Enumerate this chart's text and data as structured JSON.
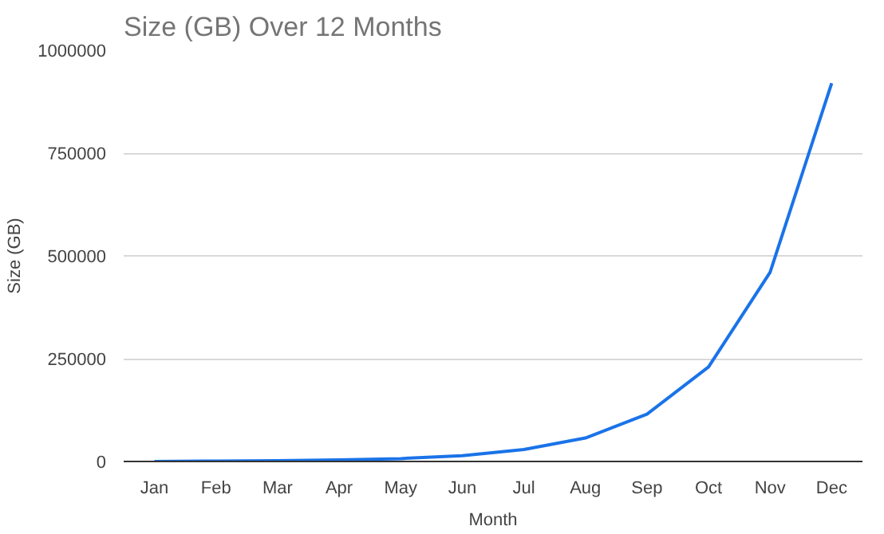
{
  "chart_data": {
    "type": "line",
    "title": "Size (GB) Over 12 Months",
    "xlabel": "Month",
    "ylabel": "Size (GB)",
    "categories": [
      "Jan",
      "Feb",
      "Mar",
      "Apr",
      "May",
      "Jun",
      "Jul",
      "Aug",
      "Sep",
      "Oct",
      "Nov",
      "Dec"
    ],
    "series": [
      {
        "color": "#1a73e8",
        "values": [
          0,
          1000,
          2000,
          4000,
          7000,
          14000,
          29000,
          57000,
          115000,
          230000,
          460000,
          920000
        ]
      }
    ],
    "ylim": [
      0,
      1000000
    ],
    "yticks": [
      0,
      250000,
      500000,
      750000,
      1000000
    ],
    "grid": "y",
    "marker": "none",
    "line_style": "solid"
  }
}
